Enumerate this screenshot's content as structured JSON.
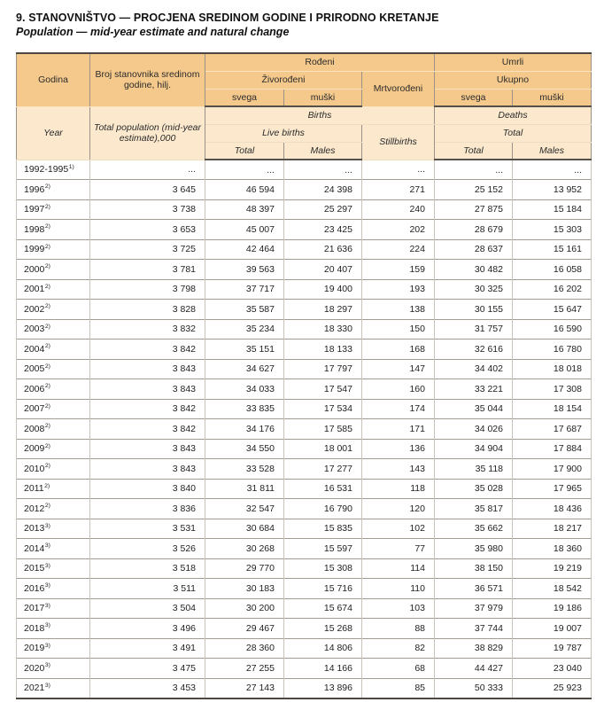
{
  "page": {
    "title": "9. STANOVNIŠTVO — PROCJENA SREDINOM GODINE I PRIRODNO KRETANJE",
    "subtitle": "Population — mid-year estimate and natural change"
  },
  "colors": {
    "header_bs_bg": "#f5c98b",
    "header_en_bg": "#fbe8cd",
    "frame_rule": "#4c4740",
    "row_line": "#a29c93",
    "column_line": "#c8c2b9"
  },
  "table": {
    "header_bs": {
      "godina": "Godina",
      "population": "Broj stanovnika sredinom godine, hilj.",
      "rodeni": "Rođeni",
      "zivorodeni": "Živorođeni",
      "mrtvorodeni": "Mrtvorođeni",
      "svega_births": "svega",
      "muski_births": "muški",
      "umrli": "Umrli",
      "ukupno": "Ukupno",
      "svega_deaths": "svega",
      "muski_deaths": "muški"
    },
    "header_en": {
      "year": "Year",
      "population": "Total population (mid-year estimate),000",
      "births": "Births",
      "live_births": "Live births",
      "stillbirths": "Stillbirths",
      "total_births": "Total",
      "males_births": "Males",
      "deaths": "Deaths",
      "total_group": "Total",
      "total_deaths": "Total",
      "males_deaths": "Males"
    },
    "rows": [
      {
        "year": "1992-1995",
        "sup": "1)",
        "pop": "...",
        "live_total": "...",
        "live_males": "...",
        "still": "...",
        "deaths_total": "...",
        "deaths_males": "..."
      },
      {
        "year": "1996",
        "sup": "2)",
        "pop": "3 645",
        "live_total": "46 594",
        "live_males": "24 398",
        "still": "271",
        "deaths_total": "25 152",
        "deaths_males": "13 952"
      },
      {
        "year": "1997",
        "sup": "2)",
        "pop": "3 738",
        "live_total": "48 397",
        "live_males": "25 297",
        "still": "240",
        "deaths_total": "27 875",
        "deaths_males": "15 184"
      },
      {
        "year": "1998",
        "sup": "2)",
        "pop": "3 653",
        "live_total": "45 007",
        "live_males": "23 425",
        "still": "202",
        "deaths_total": "28 679",
        "deaths_males": "15 303"
      },
      {
        "year": "1999",
        "sup": "2)",
        "pop": "3 725",
        "live_total": "42 464",
        "live_males": "21 636",
        "still": "224",
        "deaths_total": "28 637",
        "deaths_males": "15 161"
      },
      {
        "year": "2000",
        "sup": "2)",
        "pop": "3 781",
        "live_total": "39 563",
        "live_males": "20 407",
        "still": "159",
        "deaths_total": "30 482",
        "deaths_males": "16 058"
      },
      {
        "year": "2001",
        "sup": "2)",
        "pop": "3 798",
        "live_total": "37 717",
        "live_males": "19 400",
        "still": "193",
        "deaths_total": "30 325",
        "deaths_males": "16 202"
      },
      {
        "year": "2002",
        "sup": "2)",
        "pop": "3 828",
        "live_total": "35 587",
        "live_males": "18 297",
        "still": "138",
        "deaths_total": "30 155",
        "deaths_males": "15 647"
      },
      {
        "year": "2003",
        "sup": "2)",
        "pop": "3 832",
        "live_total": "35 234",
        "live_males": "18 330",
        "still": "150",
        "deaths_total": "31 757",
        "deaths_males": "16 590"
      },
      {
        "year": "2004",
        "sup": "2)",
        "pop": "3 842",
        "live_total": "35 151",
        "live_males": "18 133",
        "still": "168",
        "deaths_total": "32 616",
        "deaths_males": "16 780"
      },
      {
        "year": "2005",
        "sup": "2)",
        "pop": "3 843",
        "live_total": "34 627",
        "live_males": "17 797",
        "still": "147",
        "deaths_total": "34 402",
        "deaths_males": "18 018"
      },
      {
        "year": "2006",
        "sup": "2)",
        "pop": "3 843",
        "live_total": "34 033",
        "live_males": "17 547",
        "still": "160",
        "deaths_total": "33 221",
        "deaths_males": "17 308"
      },
      {
        "year": "2007",
        "sup": "2)",
        "pop": "3 842",
        "live_total": "33 835",
        "live_males": "17 534",
        "still": "174",
        "deaths_total": "35 044",
        "deaths_males": "18 154"
      },
      {
        "year": "2008",
        "sup": "2)",
        "pop": "3 842",
        "live_total": "34 176",
        "live_males": "17 585",
        "still": "171",
        "deaths_total": "34 026",
        "deaths_males": "17 687"
      },
      {
        "year": "2009",
        "sup": "2)",
        "pop": "3 843",
        "live_total": "34 550",
        "live_males": "18 001",
        "still": "136",
        "deaths_total": "34 904",
        "deaths_males": "17 884"
      },
      {
        "year": "2010",
        "sup": "2)",
        "pop": "3 843",
        "live_total": "33 528",
        "live_males": "17 277",
        "still": "143",
        "deaths_total": "35 118",
        "deaths_males": "17 900"
      },
      {
        "year": "2011",
        "sup": "2)",
        "pop": "3 840",
        "live_total": "31 811",
        "live_males": "16 531",
        "still": "118",
        "deaths_total": "35 028",
        "deaths_males": "17 965"
      },
      {
        "year": "2012",
        "sup": "2)",
        "pop": "3 836",
        "live_total": "32 547",
        "live_males": "16 790",
        "still": "120",
        "deaths_total": "35 817",
        "deaths_males": "18 436"
      },
      {
        "year": "2013",
        "sup": "3)",
        "pop": "3 531",
        "live_total": "30 684",
        "live_males": "15 835",
        "still": "102",
        "deaths_total": "35 662",
        "deaths_males": "18 217"
      },
      {
        "year": "2014",
        "sup": "3)",
        "pop": "3 526",
        "live_total": "30 268",
        "live_males": "15 597",
        "still": "77",
        "deaths_total": "35 980",
        "deaths_males": "18 360"
      },
      {
        "year": "2015",
        "sup": "3)",
        "pop": "3 518",
        "live_total": "29 770",
        "live_males": "15 308",
        "still": "114",
        "deaths_total": "38 150",
        "deaths_males": "19 219"
      },
      {
        "year": "2016",
        "sup": "3)",
        "pop": "3 511",
        "live_total": "30 183",
        "live_males": "15 716",
        "still": "110",
        "deaths_total": "36 571",
        "deaths_males": "18 542"
      },
      {
        "year": "2017",
        "sup": "3)",
        "pop": "3 504",
        "live_total": "30 200",
        "live_males": "15 674",
        "still": "103",
        "deaths_total": "37 979",
        "deaths_males": "19 186"
      },
      {
        "year": "2018",
        "sup": "3)",
        "pop": "3 496",
        "live_total": "29 467",
        "live_males": "15 268",
        "still": "88",
        "deaths_total": "37 744",
        "deaths_males": "19 007"
      },
      {
        "year": "2019",
        "sup": "3)",
        "pop": "3 491",
        "live_total": "28 360",
        "live_males": "14 806",
        "still": "82",
        "deaths_total": "38 829",
        "deaths_males": "19 787"
      },
      {
        "year": "2020",
        "sup": "3)",
        "pop": "3 475",
        "live_total": "27 255",
        "live_males": "14 166",
        "still": "68",
        "deaths_total": "44 427",
        "deaths_males": "23 040"
      },
      {
        "year": "2021",
        "sup": "3)",
        "pop": "3 453",
        "live_total": "27 143",
        "live_males": "13 896",
        "still": "85",
        "deaths_total": "50 333",
        "deaths_males": "25 923"
      }
    ]
  }
}
